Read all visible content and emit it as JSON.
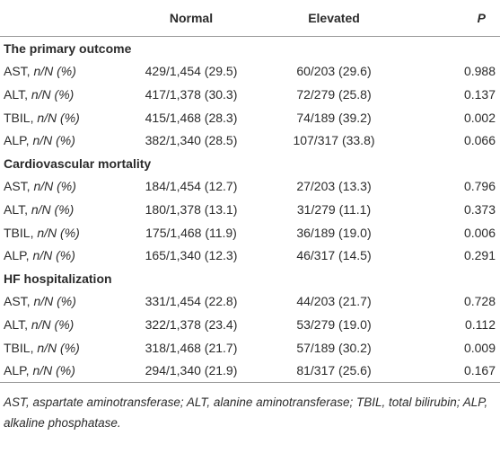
{
  "table": {
    "columns": [
      "Normal",
      "Elevated",
      "P"
    ],
    "sections": [
      {
        "title": "The primary outcome",
        "rows": [
          {
            "label": "AST,",
            "unit": "n/N (%)",
            "normal": "429/1,454 (29.5)",
            "elevated": "60/203 (29.6)",
            "p": "0.988"
          },
          {
            "label": "ALT,",
            "unit": "n/N (%)",
            "normal": "417/1,378 (30.3)",
            "elevated": "72/279 (25.8)",
            "p": "0.137"
          },
          {
            "label": "TBIL,",
            "unit": "n/N (%)",
            "normal": "415/1,468 (28.3)",
            "elevated": "74/189 (39.2)",
            "p": "0.002"
          },
          {
            "label": "ALP,",
            "unit": "n/N (%)",
            "normal": "382/1,340 (28.5)",
            "elevated": "107/317 (33.8)",
            "p": "0.066"
          }
        ]
      },
      {
        "title": "Cardiovascular mortality",
        "rows": [
          {
            "label": "AST,",
            "unit": "n/N (%)",
            "normal": "184/1,454 (12.7)",
            "elevated": "27/203 (13.3)",
            "p": "0.796"
          },
          {
            "label": "ALT,",
            "unit": "n/N (%)",
            "normal": "180/1,378 (13.1)",
            "elevated": "31/279 (11.1)",
            "p": "0.373"
          },
          {
            "label": "TBIL,",
            "unit": "n/N (%)",
            "normal": "175/1,468 (11.9)",
            "elevated": "36/189 (19.0)",
            "p": "0.006"
          },
          {
            "label": "ALP,",
            "unit": "n/N (%)",
            "normal": "165/1,340 (12.3)",
            "elevated": "46/317 (14.5)",
            "p": "0.291"
          }
        ]
      },
      {
        "title": "HF hospitalization",
        "rows": [
          {
            "label": "AST,",
            "unit": "n/N (%)",
            "normal": "331/1,454 (22.8)",
            "elevated": "44/203 (21.7)",
            "p": "0.728"
          },
          {
            "label": "ALT,",
            "unit": "n/N (%)",
            "normal": "322/1,378 (23.4)",
            "elevated": "53/279 (19.0)",
            "p": "0.112"
          },
          {
            "label": "TBIL,",
            "unit": "n/N (%)",
            "normal": "318/1,468 (21.7)",
            "elevated": "57/189 (30.2)",
            "p": "0.009"
          },
          {
            "label": "ALP,",
            "unit": "n/N (%)",
            "normal": "294/1,340 (21.9)",
            "elevated": "81/317 (25.6)",
            "p": "0.167"
          }
        ]
      }
    ],
    "footnote": "AST, aspartate aminotransferase; ALT, alanine aminotransferase; TBIL, total bilirubin; ALP, alkaline phosphatase."
  }
}
